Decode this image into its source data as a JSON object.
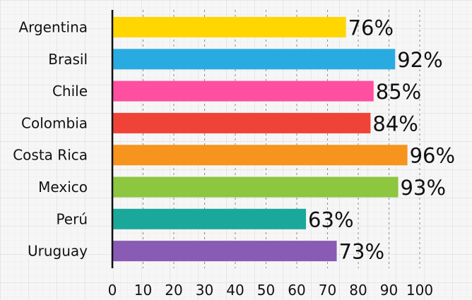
{
  "chart_data": {
    "type": "bar",
    "orientation": "horizontal",
    "categories": [
      "Argentina",
      "Brasil",
      "Chile",
      "Colombia",
      "Costa Rica",
      "Mexico",
      "Perú",
      "Uruguay"
    ],
    "values": [
      76,
      92,
      85,
      84,
      96,
      93,
      63,
      73
    ],
    "value_labels": [
      "76%",
      "92%",
      "85%",
      "84%",
      "96%",
      "93%",
      "63%",
      "73%"
    ],
    "colors": [
      "#ffd600",
      "#29abe2",
      "#ff4fa0",
      "#f04338",
      "#f7941d",
      "#8dc63f",
      "#1aa89a",
      "#8a5bb5"
    ],
    "xlim": [
      0,
      100
    ],
    "x_ticks": [
      0,
      10,
      20,
      30,
      40,
      50,
      60,
      70,
      80,
      90,
      100
    ],
    "x_tick_labels": [
      "0",
      "10",
      "20",
      "30",
      "40",
      "50",
      "60",
      "70",
      "80",
      "90",
      "100"
    ],
    "grid": "vertical dashed",
    "title": "",
    "xlabel": "",
    "ylabel": ""
  }
}
